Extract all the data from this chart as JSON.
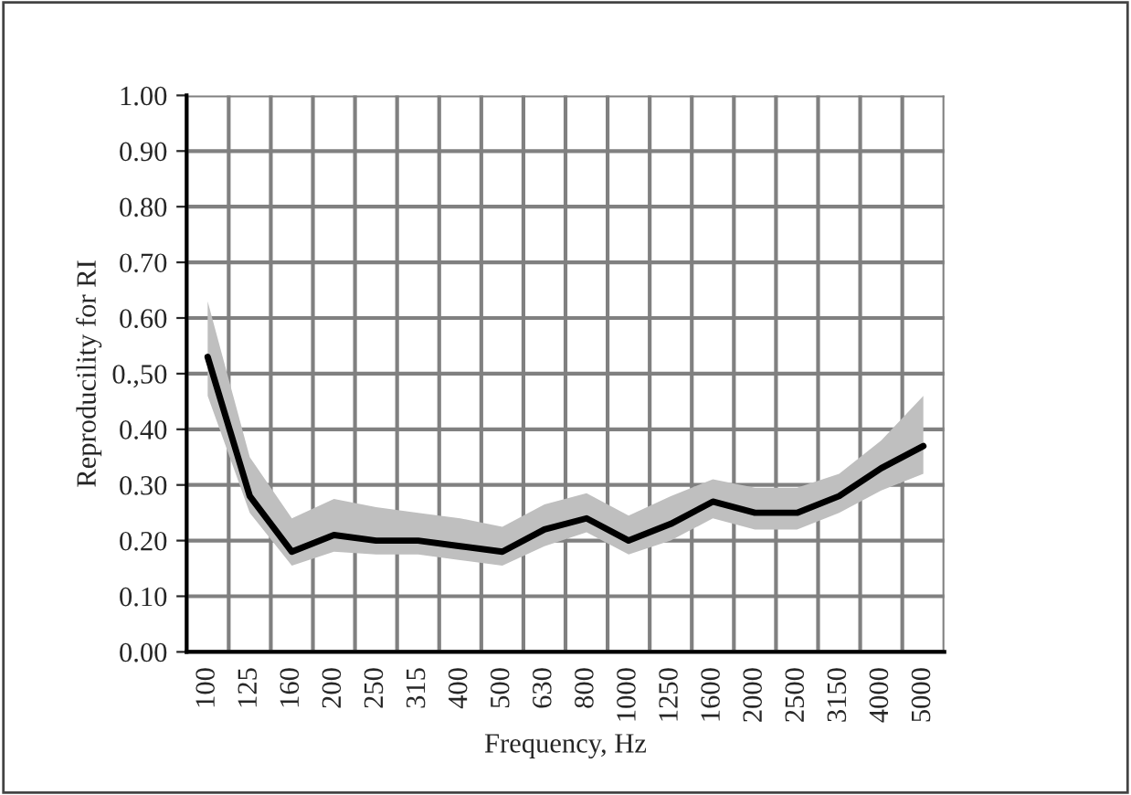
{
  "chart_data": {
    "type": "line",
    "xlabel": "Frequency, Hz",
    "ylabel": "Reproducility for RI",
    "categories": [
      "100",
      "125",
      "160",
      "200",
      "250",
      "315",
      "400",
      "500",
      "630",
      "800",
      "1000",
      "1250",
      "1600",
      "2000",
      "2500",
      "3150",
      "4000",
      "5000"
    ],
    "series": [
      {
        "color": "#000000",
        "values": [
          0.53,
          0.28,
          0.18,
          0.21,
          0.2,
          0.2,
          0.19,
          0.18,
          0.22,
          0.24,
          0.2,
          0.23,
          0.27,
          0.25,
          0.25,
          0.28,
          0.33,
          0.37
        ],
        "lower": [
          0.46,
          0.25,
          0.155,
          0.18,
          0.175,
          0.175,
          0.165,
          0.155,
          0.19,
          0.215,
          0.175,
          0.2,
          0.24,
          0.22,
          0.22,
          0.25,
          0.29,
          0.32
        ],
        "upper": [
          0.63,
          0.35,
          0.24,
          0.275,
          0.26,
          0.25,
          0.24,
          0.225,
          0.265,
          0.285,
          0.245,
          0.28,
          0.31,
          0.295,
          0.295,
          0.32,
          0.38,
          0.46
        ]
      }
    ],
    "ylim": [
      0,
      1
    ],
    "yticks": [
      {
        "value": 0,
        "label": "0.00"
      },
      {
        "value": 0.1,
        "label": "0.10"
      },
      {
        "value": 0.2,
        "label": "0.20"
      },
      {
        "value": 0.3,
        "label": "0.30"
      },
      {
        "value": 0.4,
        "label": "0.40"
      },
      {
        "value": 0.5,
        "label": "0.,50"
      },
      {
        "value": 0.6,
        "label": "0.60"
      },
      {
        "value": 0.7,
        "label": "0.70"
      },
      {
        "value": 0.8,
        "label": "0.80"
      },
      {
        "value": 0.9,
        "label": "0.90"
      },
      {
        "value": 1,
        "label": "1.00"
      }
    ],
    "grid": true,
    "marker": "none",
    "line_style": "solid"
  }
}
